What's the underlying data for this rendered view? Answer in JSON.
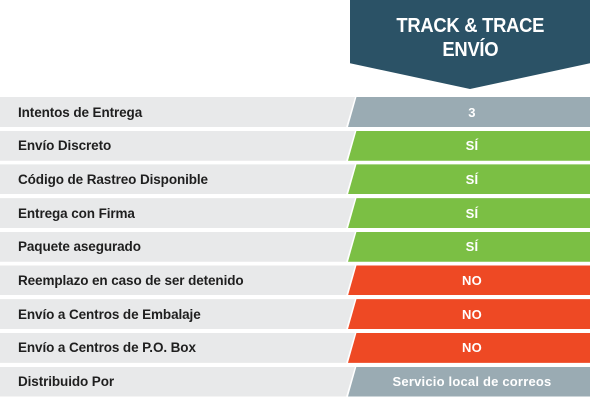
{
  "header": {
    "line1": "TRACK & TRACE",
    "line2": "ENVÍO",
    "color": "#2b5266"
  },
  "rows": [
    {
      "label": "Intentos de Entrega",
      "value": "3",
      "status": "neutral"
    },
    {
      "label": "Envío Discreto",
      "value": "SÍ",
      "status": "yes"
    },
    {
      "label": "Código de Rastreo Disponible",
      "value": "SÍ",
      "status": "yes"
    },
    {
      "label": "Entrega con Firma",
      "value": "SÍ",
      "status": "yes"
    },
    {
      "label": "Paquete asegurado",
      "value": "SÍ",
      "status": "yes"
    },
    {
      "label": "Reemplazo en caso de ser detenido",
      "value": "NO",
      "status": "no"
    },
    {
      "label": "Envío a Centros de Embalaje",
      "value": "NO",
      "status": "no"
    },
    {
      "label": "Envío a Centros de P.O. Box",
      "value": "NO",
      "status": "no"
    },
    {
      "label": "Distribuido Por",
      "value": "Servicio local de correos",
      "status": "neutral"
    }
  ],
  "colors": {
    "neutral": "#9aabb3",
    "yes": "#7bbf44",
    "no": "#ee4924",
    "label_bg": "#e8e9ea"
  }
}
